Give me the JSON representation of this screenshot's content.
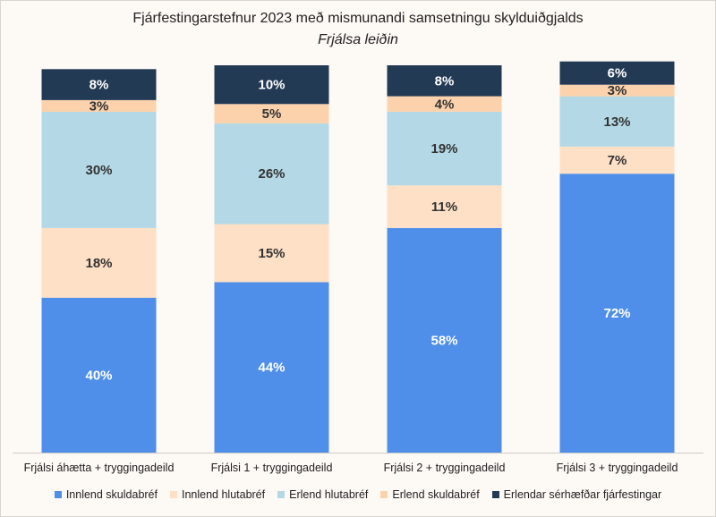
{
  "chart_data": {
    "type": "bar",
    "stacked": true,
    "title": "Fjárfestingarstefnur 2023 með mismunandi samsetningu skylduiðgjalds",
    "subtitle": "Frjálsa leiðin",
    "categories": [
      "Frjálsi áhætta + tryggingadeild",
      "Frjálsi 1 + tryggingadeild",
      "Frjálsi 2 + tryggingadeild",
      "Frjálsi 3 + tryggingadeild"
    ],
    "series": [
      {
        "name": "Innlend skuldabréf",
        "color": "#4f8fea",
        "values": [
          40,
          44,
          58,
          72
        ],
        "labels": [
          "40%",
          "44%",
          "58%",
          "72%"
        ]
      },
      {
        "name": "Innlend hlutabréf",
        "color": "#fde0c6",
        "values": [
          18,
          15,
          11,
          7
        ],
        "labels": [
          "18%",
          "15%",
          "11%",
          "7%"
        ]
      },
      {
        "name": "Erlend hlutabréf",
        "color": "#b4d8e6",
        "values": [
          30,
          26,
          19,
          13
        ],
        "labels": [
          "30%",
          "26%",
          "19%",
          "13%"
        ]
      },
      {
        "name": "Erlend skuldabréf",
        "color": "#fbd2ac",
        "values": [
          3,
          5,
          4,
          3
        ],
        "labels": [
          "3%",
          "5%",
          "4%",
          "3%"
        ]
      },
      {
        "name": "Erlendar sérhæfðar fjárfestingar",
        "color": "#233a55",
        "values": [
          8,
          10,
          8,
          6
        ],
        "labels": [
          "8%",
          "10%",
          "8%",
          "6%"
        ]
      }
    ],
    "ylim": [
      0,
      100
    ],
    "grid": false,
    "legend_position": "bottom"
  }
}
